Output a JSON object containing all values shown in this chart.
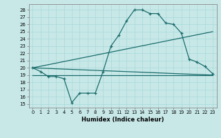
{
  "background_color": "#c8e8e8",
  "line_color": "#1a6b6b",
  "xlabel": "Humidex (Indice chaleur)",
  "xlim": [
    -0.5,
    23.5
  ],
  "ylim": [
    14.5,
    28.8
  ],
  "yticks": [
    15,
    16,
    17,
    18,
    19,
    20,
    21,
    22,
    23,
    24,
    25,
    26,
    27,
    28
  ],
  "xticks": [
    0,
    1,
    2,
    3,
    4,
    5,
    6,
    7,
    8,
    9,
    10,
    11,
    12,
    13,
    14,
    15,
    16,
    17,
    18,
    19,
    20,
    21,
    22,
    23
  ],
  "main_x": [
    0,
    1,
    2,
    3,
    4,
    5,
    6,
    7,
    8,
    9,
    10,
    11,
    12,
    13,
    14,
    15,
    16,
    17,
    18,
    19,
    20,
    21,
    22,
    23
  ],
  "main_y": [
    20.0,
    19.5,
    18.8,
    18.8,
    18.5,
    15.2,
    16.5,
    16.5,
    16.5,
    19.5,
    23.0,
    24.5,
    26.5,
    28.0,
    28.0,
    27.5,
    27.5,
    26.2,
    26.0,
    24.8,
    21.2,
    20.8,
    20.2,
    19.2
  ],
  "line1_x": [
    0,
    23
  ],
  "line1_y": [
    20.0,
    19.0
  ],
  "line2_x": [
    0,
    23
  ],
  "line2_y": [
    20.0,
    25.0
  ],
  "line3_x": [
    0,
    23
  ],
  "line3_y": [
    19.0,
    19.0
  ]
}
